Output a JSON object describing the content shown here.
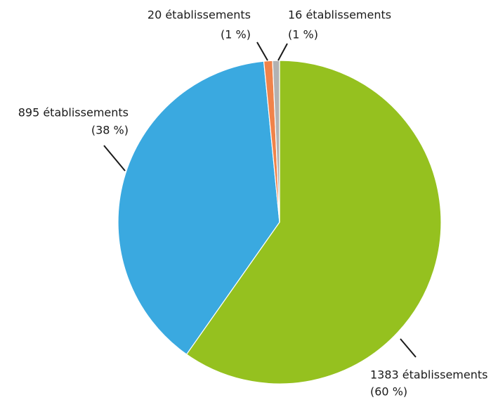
{
  "chart_data": {
    "type": "pie",
    "values": [
      1383,
      895,
      20,
      16
    ],
    "value_labels": [
      "1383 établissements",
      "895 établissements",
      "20 établissements",
      "16 établissements"
    ],
    "percentages": [
      60,
      38,
      1,
      1
    ],
    "percentage_labels": [
      "(60 %)",
      "(38 %)",
      "(1 %)",
      "(1 %)"
    ],
    "colors": [
      "#95c11f",
      "#3aa9e0",
      "#f0834a",
      "#b2b2b2"
    ]
  }
}
